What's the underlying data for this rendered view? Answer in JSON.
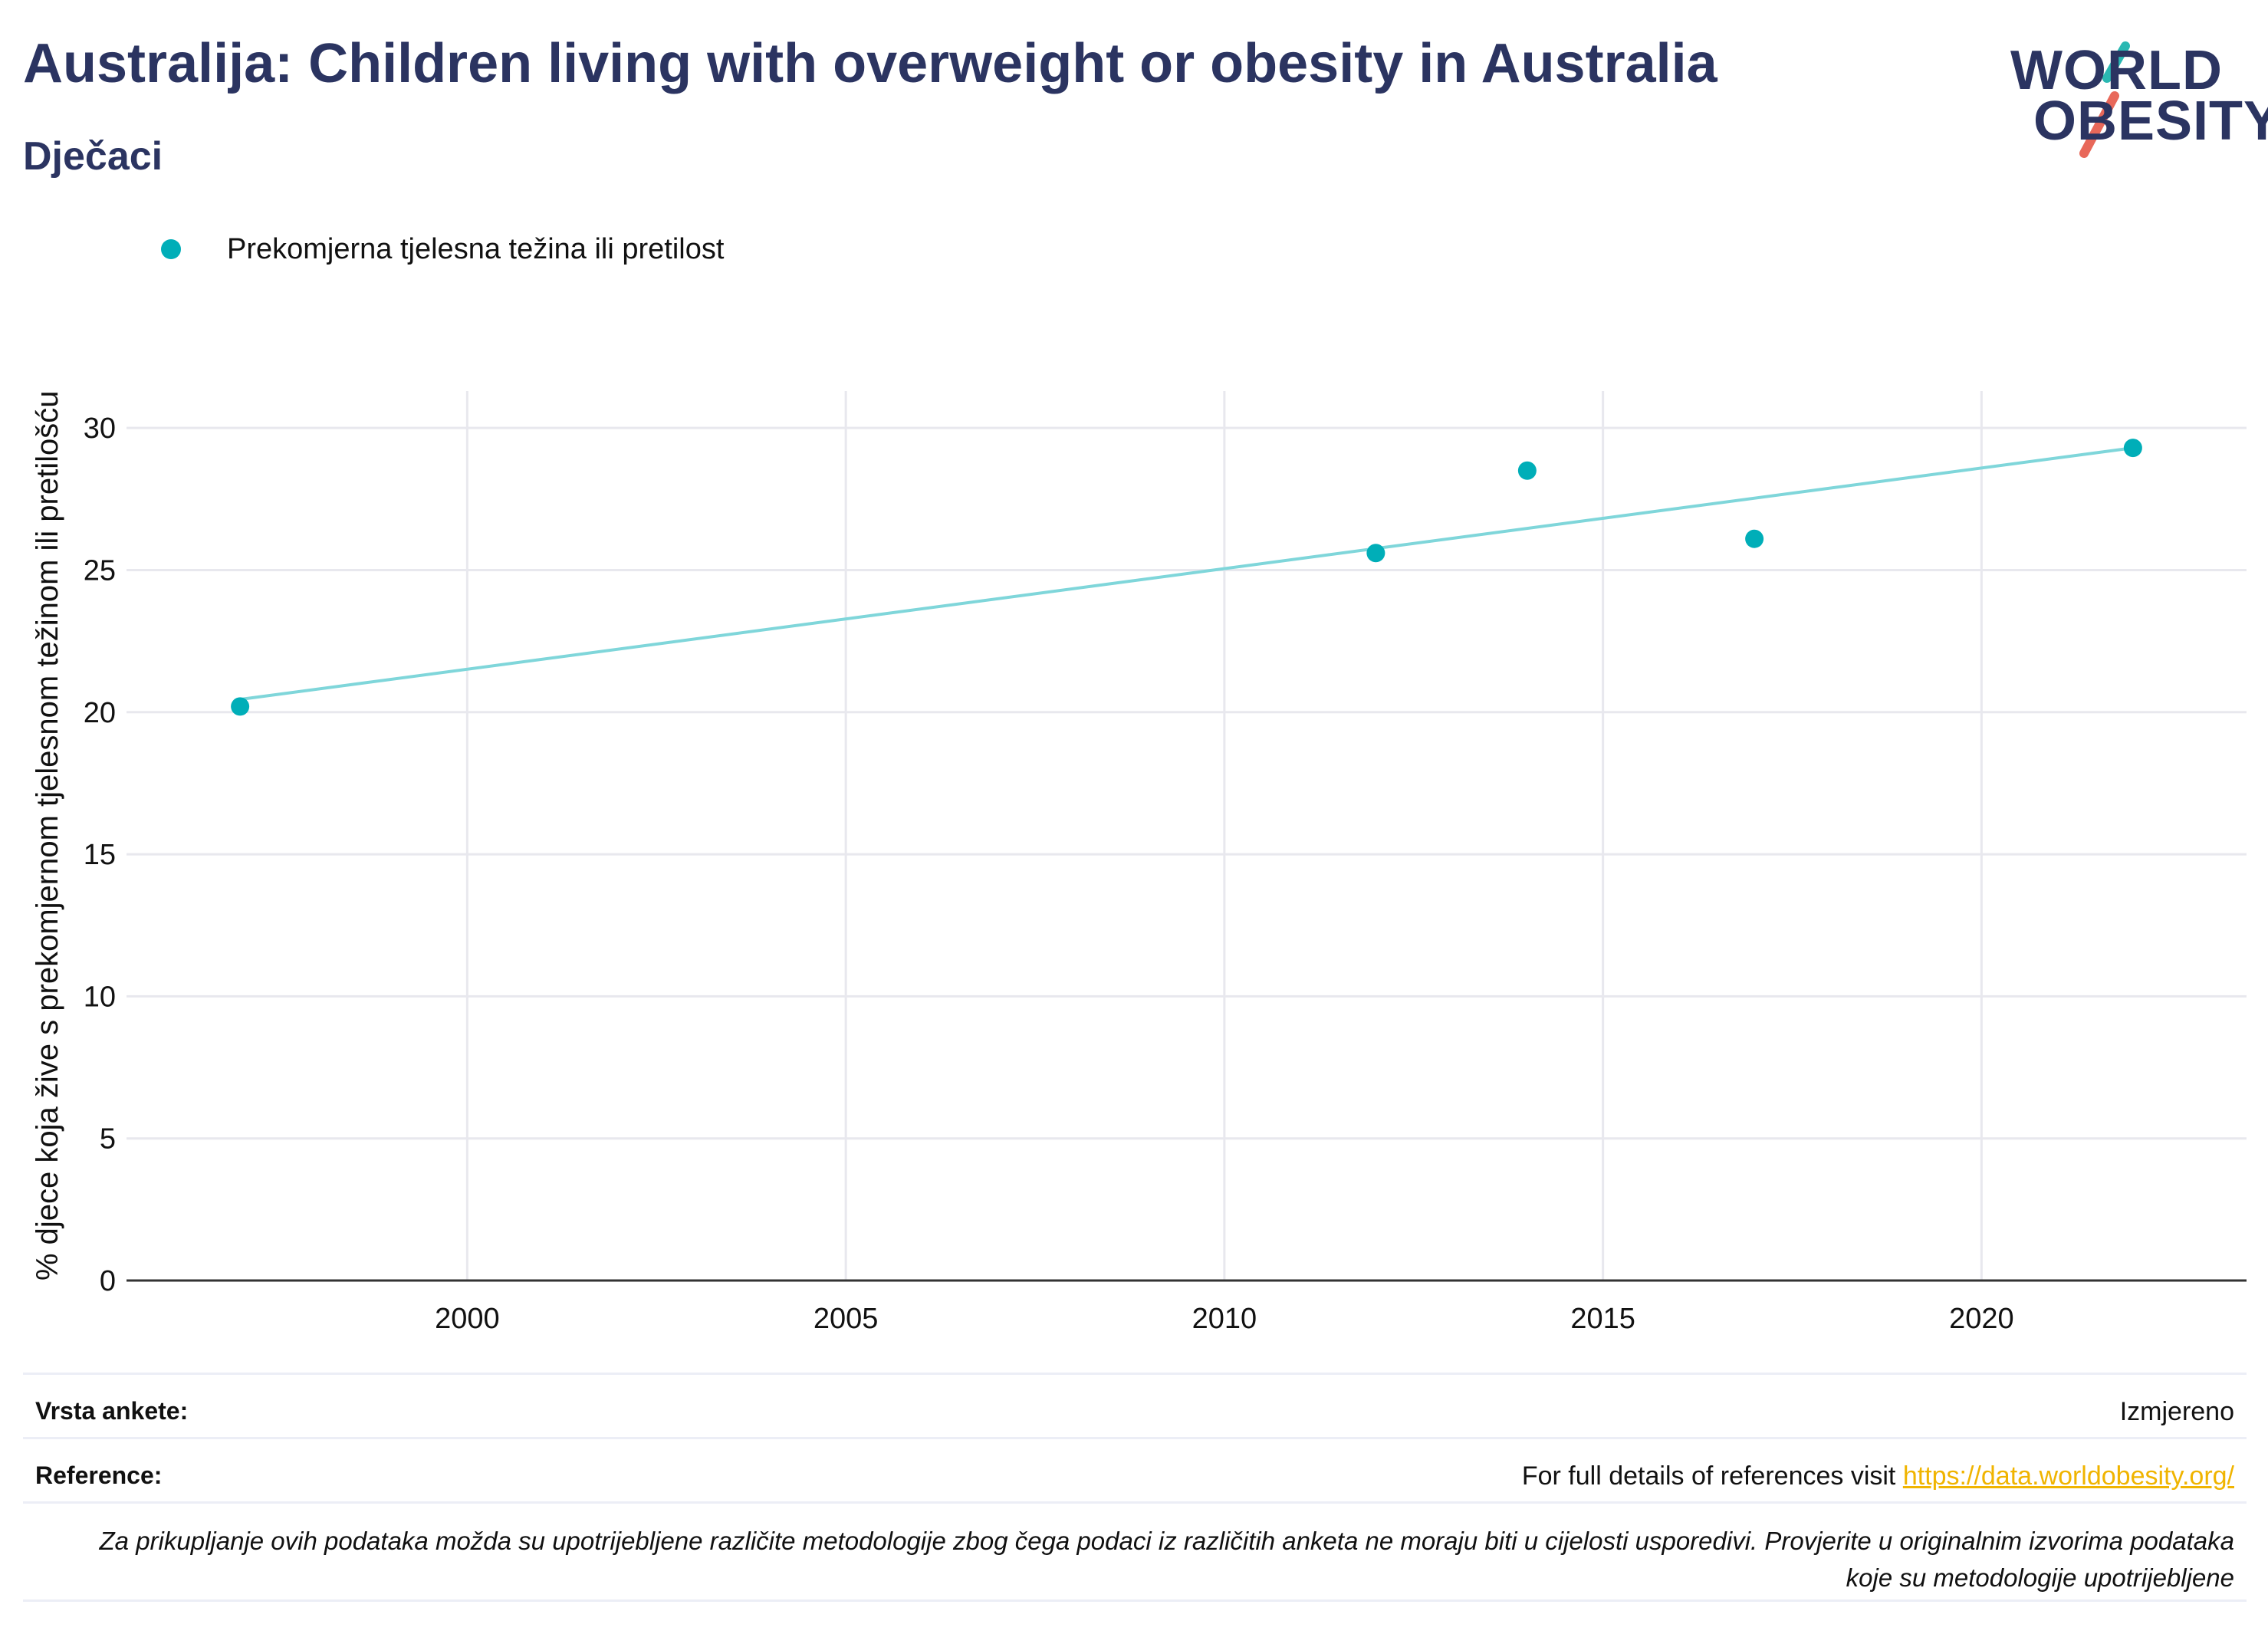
{
  "header": {
    "title": "Australija: Children living with overweight or obesity in Australia",
    "subtitle": "Dječaci"
  },
  "logo": {
    "line1": "WORLD",
    "line2": "OBESITY",
    "accent_teal": "#2ab8b2",
    "accent_coral": "#e8685a"
  },
  "colors": {
    "series": "#00aeb8",
    "trend": "#7fd6da",
    "grid": "#e8e8ee",
    "axis": "#333333"
  },
  "chart_data": {
    "type": "scatter",
    "legend_position": "top-left",
    "grid": true,
    "ylabel": "% djece koja žive s prekomjernom tjelesnom težinom ili pretilošću",
    "xlabel": "",
    "xlim": [
      1995.5,
      2023.5
    ],
    "ylim": [
      0,
      31.3
    ],
    "xticks": [
      2000,
      2005,
      2010,
      2015,
      2020
    ],
    "yticks": [
      0,
      5,
      10,
      15,
      20,
      25,
      30
    ],
    "series": [
      {
        "name": "Prekomjerna tjelesna težina ili pretilost",
        "x": [
          1997,
          2012,
          2014,
          2017,
          2022
        ],
        "y": [
          20.2,
          25.6,
          28.5,
          26.1,
          29.3
        ]
      }
    ],
    "trendline": {
      "x": [
        1997,
        2022
      ],
      "y": [
        20.45,
        29.3
      ]
    }
  },
  "info": {
    "survey_label": "Vrsta ankete:",
    "survey_value": "Izmjereno",
    "ref_label": "Reference:",
    "ref_text": "For full details of references visit",
    "ref_link": "https://data.worldobesity.org/",
    "note": "Za prikupljanje ovih podataka možda su upotrijebljene različite metodologije zbog čega podaci iz različitih anketa ne moraju biti u cijelosti usporedivi. Provjerite u originalnim izvorima podataka koje su metodologije upotrijebljene"
  }
}
